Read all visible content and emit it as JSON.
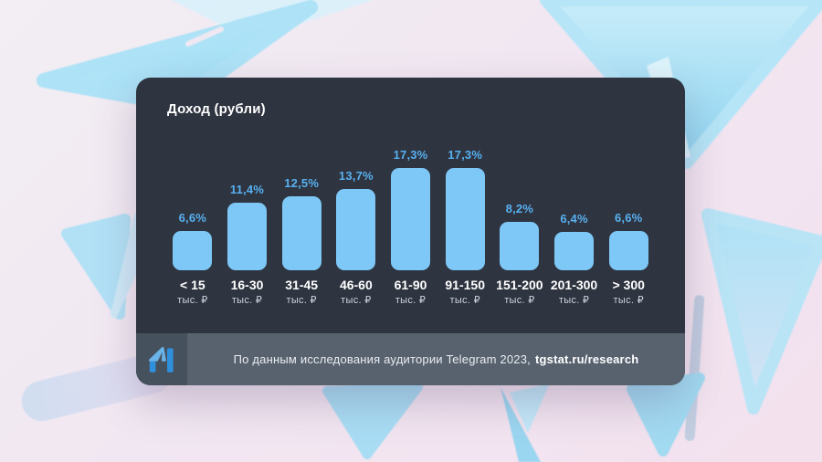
{
  "chart_data": {
    "type": "bar",
    "title": "Доход (рубли)",
    "categories": [
      "< 15",
      "16-30",
      "31-45",
      "46-60",
      "61-90",
      "91-150",
      "151-200",
      "201-300",
      "> 300"
    ],
    "category_unit": "тыс. ₽",
    "values": [
      6.6,
      11.4,
      12.5,
      13.7,
      17.3,
      17.3,
      8.2,
      6.4,
      6.6
    ],
    "value_labels": [
      "6,6%",
      "11,4%",
      "12,5%",
      "13,7%",
      "17,3%",
      "17,3%",
      "8,2%",
      "6,4%",
      "6,6%"
    ],
    "ylim": [
      0,
      20
    ],
    "grid": false,
    "legend": "none",
    "bar_color": "#7ec8f7",
    "value_label_color": "#58b1f0"
  },
  "footer": {
    "source_text": "По данным исследования аудитории Telegram 2023,",
    "link_text": "tgstat.ru/research",
    "logo": "tgstat-logo-icon"
  },
  "colors": {
    "panel_bg": "#2e3440",
    "footer_bg": "#58626f",
    "logo_bg": "#46515e",
    "title": "#ffffff",
    "category": "#ffffff",
    "unit": "#ccd4dc",
    "footer_text": "#e9edf1",
    "footer_link": "#ffffff",
    "page_bg": "#f1e7f2",
    "plane_blue": "#a5dff5"
  }
}
